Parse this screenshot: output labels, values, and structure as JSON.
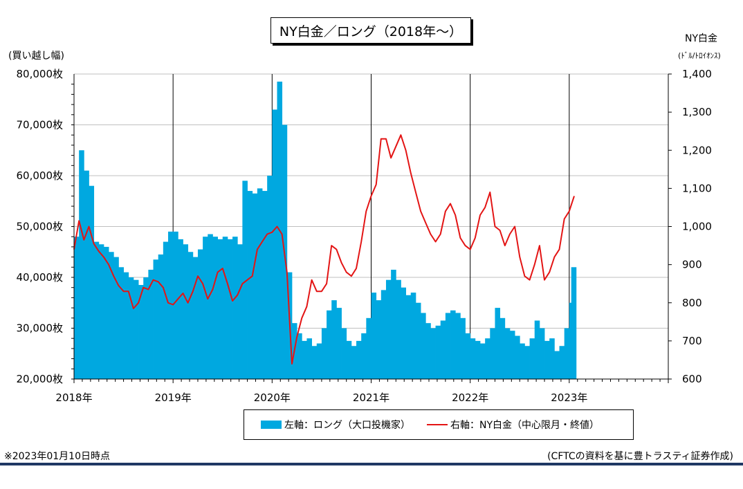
{
  "title": "NY白金／ロング（2018年～）",
  "left_unit": "(買い越し幅)",
  "right_unit_1": "NY白金",
  "right_unit_2": "(ﾄﾞﾙ/ﾄﾛｲｵﾝｽ)",
  "footnote": "※2023年01月10日時点",
  "source": "(CFTCの資料を基に豊トラスティ証券作成)",
  "legend": {
    "bar_label": "左軸：ロング（大口投機家）",
    "line_label": "右軸：NY白金（中心限月・終値）"
  },
  "colors": {
    "bar": "#00a8e0",
    "line": "#e31414",
    "grid": "#bfbfbf",
    "rule": "#1f3864"
  },
  "chart_data": {
    "type": "bar+line",
    "x_labels": [
      "2018年",
      "2019年",
      "2020年",
      "2021年",
      "2022年",
      "2023年"
    ],
    "left_axis": {
      "min": 20000,
      "max": 80000,
      "step": 10000,
      "tick_labels": [
        "20,000枚",
        "30,000枚",
        "40,000枚",
        "50,000枚",
        "60,000枚",
        "70,000枚",
        "80,000枚"
      ]
    },
    "right_axis": {
      "min": 600,
      "max": 1400,
      "step": 100,
      "tick_labels": [
        "600",
        "700",
        "800",
        "900",
        "1,000",
        "1,100",
        "1,200",
        "1,300",
        "1,400"
      ]
    },
    "x_range": [
      2018.0,
      2024.0
    ],
    "grid": true,
    "series": [
      {
        "name": "左軸：ロング（大口投機家）",
        "type": "bar",
        "axis": "left",
        "points": [
          [
            2018.0,
            48000
          ],
          [
            2018.05,
            65000
          ],
          [
            2018.1,
            61000
          ],
          [
            2018.15,
            58000
          ],
          [
            2018.2,
            47000
          ],
          [
            2018.25,
            46500
          ],
          [
            2018.3,
            46000
          ],
          [
            2018.35,
            45000
          ],
          [
            2018.4,
            44000
          ],
          [
            2018.45,
            42000
          ],
          [
            2018.5,
            41000
          ],
          [
            2018.55,
            40000
          ],
          [
            2018.6,
            39500
          ],
          [
            2018.65,
            38500
          ],
          [
            2018.7,
            40000
          ],
          [
            2018.75,
            41500
          ],
          [
            2018.8,
            43500
          ],
          [
            2018.85,
            44500
          ],
          [
            2018.9,
            47000
          ],
          [
            2018.95,
            49000
          ],
          [
            2019.0,
            49000
          ],
          [
            2019.05,
            47500
          ],
          [
            2019.1,
            46500
          ],
          [
            2019.15,
            45000
          ],
          [
            2019.2,
            44000
          ],
          [
            2019.25,
            45500
          ],
          [
            2019.3,
            48000
          ],
          [
            2019.35,
            48500
          ],
          [
            2019.4,
            48000
          ],
          [
            2019.45,
            47500
          ],
          [
            2019.5,
            48000
          ],
          [
            2019.55,
            47500
          ],
          [
            2019.6,
            48000
          ],
          [
            2019.65,
            46500
          ],
          [
            2019.7,
            59000
          ],
          [
            2019.75,
            57000
          ],
          [
            2019.8,
            56500
          ],
          [
            2019.85,
            57500
          ],
          [
            2019.9,
            57000
          ],
          [
            2019.95,
            60000
          ],
          [
            2020.0,
            73000
          ],
          [
            2020.05,
            78500
          ],
          [
            2020.1,
            70000
          ],
          [
            2020.15,
            41000
          ],
          [
            2020.2,
            31000
          ],
          [
            2020.25,
            29000
          ],
          [
            2020.3,
            27500
          ],
          [
            2020.35,
            28000
          ],
          [
            2020.4,
            26500
          ],
          [
            2020.45,
            27000
          ],
          [
            2020.5,
            30000
          ],
          [
            2020.55,
            33500
          ],
          [
            2020.6,
            35500
          ],
          [
            2020.65,
            34000
          ],
          [
            2020.7,
            30000
          ],
          [
            2020.75,
            27500
          ],
          [
            2020.8,
            26500
          ],
          [
            2020.85,
            27500
          ],
          [
            2020.9,
            29000
          ],
          [
            2020.95,
            32000
          ],
          [
            2021.0,
            37000
          ],
          [
            2021.05,
            35500
          ],
          [
            2021.1,
            37500
          ],
          [
            2021.15,
            39500
          ],
          [
            2021.2,
            41500
          ],
          [
            2021.25,
            39500
          ],
          [
            2021.3,
            38000
          ],
          [
            2021.35,
            36500
          ],
          [
            2021.4,
            37000
          ],
          [
            2021.45,
            35000
          ],
          [
            2021.5,
            33000
          ],
          [
            2021.55,
            31000
          ],
          [
            2021.6,
            30000
          ],
          [
            2021.65,
            30500
          ],
          [
            2021.7,
            31500
          ],
          [
            2021.75,
            33000
          ],
          [
            2021.8,
            33500
          ],
          [
            2021.85,
            33000
          ],
          [
            2021.9,
            32000
          ],
          [
            2021.95,
            29000
          ],
          [
            2022.0,
            28000
          ],
          [
            2022.05,
            27500
          ],
          [
            2022.1,
            27000
          ],
          [
            2022.15,
            28000
          ],
          [
            2022.2,
            30000
          ],
          [
            2022.25,
            34000
          ],
          [
            2022.3,
            32000
          ],
          [
            2022.35,
            30000
          ],
          [
            2022.4,
            29500
          ],
          [
            2022.45,
            28500
          ],
          [
            2022.5,
            27000
          ],
          [
            2022.55,
            26500
          ],
          [
            2022.6,
            28000
          ],
          [
            2022.65,
            31500
          ],
          [
            2022.7,
            30000
          ],
          [
            2022.75,
            27500
          ],
          [
            2022.8,
            28000
          ],
          [
            2022.85,
            25500
          ],
          [
            2022.9,
            26500
          ],
          [
            2022.95,
            30000
          ],
          [
            2023.0,
            35000
          ],
          [
            2023.02,
            42000
          ]
        ]
      },
      {
        "name": "右軸：NY白金（中心限月・終値）",
        "type": "line",
        "axis": "right",
        "points": [
          [
            2018.0,
            940
          ],
          [
            2018.05,
            1015
          ],
          [
            2018.1,
            965
          ],
          [
            2018.15,
            1000
          ],
          [
            2018.2,
            955
          ],
          [
            2018.25,
            935
          ],
          [
            2018.3,
            920
          ],
          [
            2018.35,
            900
          ],
          [
            2018.4,
            870
          ],
          [
            2018.45,
            845
          ],
          [
            2018.5,
            830
          ],
          [
            2018.55,
            830
          ],
          [
            2018.6,
            785
          ],
          [
            2018.65,
            800
          ],
          [
            2018.7,
            840
          ],
          [
            2018.75,
            835
          ],
          [
            2018.8,
            860
          ],
          [
            2018.85,
            855
          ],
          [
            2018.9,
            840
          ],
          [
            2018.95,
            800
          ],
          [
            2019.0,
            795
          ],
          [
            2019.05,
            810
          ],
          [
            2019.1,
            825
          ],
          [
            2019.15,
            800
          ],
          [
            2019.2,
            830
          ],
          [
            2019.25,
            870
          ],
          [
            2019.3,
            850
          ],
          [
            2019.35,
            810
          ],
          [
            2019.4,
            835
          ],
          [
            2019.45,
            880
          ],
          [
            2019.5,
            890
          ],
          [
            2019.55,
            850
          ],
          [
            2019.6,
            805
          ],
          [
            2019.65,
            820
          ],
          [
            2019.7,
            850
          ],
          [
            2019.75,
            860
          ],
          [
            2019.8,
            870
          ],
          [
            2019.85,
            940
          ],
          [
            2019.9,
            960
          ],
          [
            2019.95,
            980
          ],
          [
            2020.0,
            985
          ],
          [
            2020.05,
            1000
          ],
          [
            2020.1,
            980
          ],
          [
            2020.15,
            880
          ],
          [
            2020.2,
            640
          ],
          [
            2020.25,
            710
          ],
          [
            2020.3,
            760
          ],
          [
            2020.35,
            790
          ],
          [
            2020.4,
            860
          ],
          [
            2020.45,
            830
          ],
          [
            2020.5,
            830
          ],
          [
            2020.55,
            850
          ],
          [
            2020.6,
            950
          ],
          [
            2020.65,
            940
          ],
          [
            2020.7,
            905
          ],
          [
            2020.75,
            880
          ],
          [
            2020.8,
            870
          ],
          [
            2020.85,
            890
          ],
          [
            2020.9,
            960
          ],
          [
            2020.95,
            1040
          ],
          [
            2021.0,
            1080
          ],
          [
            2021.05,
            1110
          ],
          [
            2021.1,
            1230
          ],
          [
            2021.15,
            1230
          ],
          [
            2021.2,
            1180
          ],
          [
            2021.25,
            1210
          ],
          [
            2021.3,
            1240
          ],
          [
            2021.35,
            1200
          ],
          [
            2021.4,
            1140
          ],
          [
            2021.45,
            1090
          ],
          [
            2021.5,
            1040
          ],
          [
            2021.55,
            1010
          ],
          [
            2021.6,
            980
          ],
          [
            2021.65,
            960
          ],
          [
            2021.7,
            980
          ],
          [
            2021.75,
            1040
          ],
          [
            2021.8,
            1060
          ],
          [
            2021.85,
            1030
          ],
          [
            2021.9,
            970
          ],
          [
            2021.95,
            950
          ],
          [
            2022.0,
            940
          ],
          [
            2022.05,
            970
          ],
          [
            2022.1,
            1030
          ],
          [
            2022.15,
            1050
          ],
          [
            2022.2,
            1090
          ],
          [
            2022.25,
            1000
          ],
          [
            2022.3,
            990
          ],
          [
            2022.35,
            950
          ],
          [
            2022.4,
            980
          ],
          [
            2022.45,
            1000
          ],
          [
            2022.5,
            920
          ],
          [
            2022.55,
            870
          ],
          [
            2022.6,
            860
          ],
          [
            2022.65,
            900
          ],
          [
            2022.7,
            950
          ],
          [
            2022.75,
            860
          ],
          [
            2022.8,
            880
          ],
          [
            2022.85,
            920
          ],
          [
            2022.9,
            940
          ],
          [
            2022.95,
            1020
          ],
          [
            2023.0,
            1040
          ],
          [
            2023.05,
            1080
          ]
        ]
      }
    ]
  }
}
